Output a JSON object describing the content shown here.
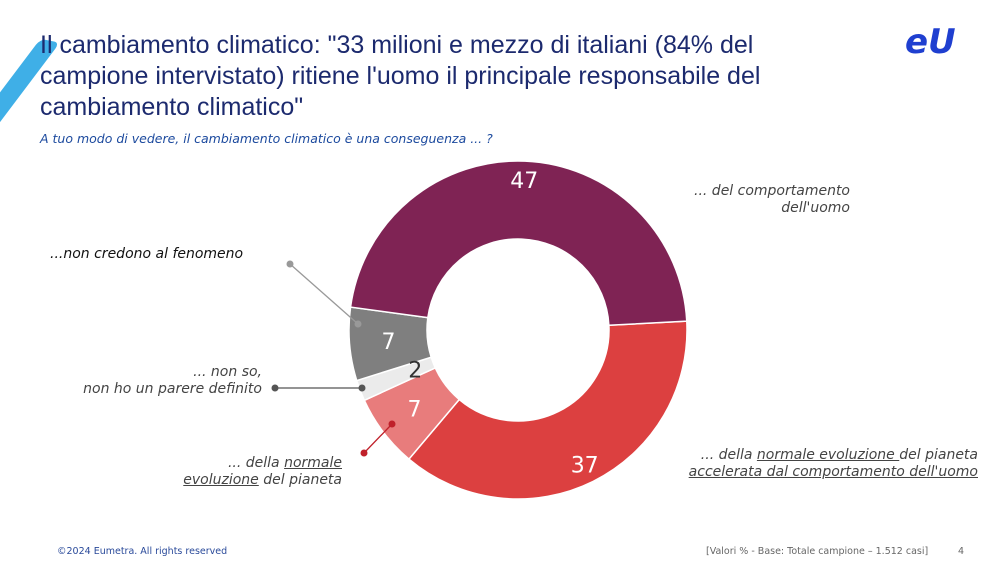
{
  "header": {
    "title": "Il cambiamento climatico: \"33 milioni e mezzo di italiani (84% del campione intervistato) ritiene l'uomo il principale responsabile del cambiamento climatico\"",
    "subtitle": "A tuo modo di vedere, il cambiamento climatico è una conseguenza ... ?",
    "logo": "eU"
  },
  "chart_data": {
    "type": "pie",
    "donut": true,
    "title": "A tuo modo di vedere, il cambiamento climatico è una conseguenza ... ?",
    "slices": [
      {
        "label": "... della normale evoluzione del pianeta accelerata dal comportamento dell'uomo",
        "value": 37,
        "color": "#dc4040"
      },
      {
        "label": "... della normale evoluzione del pianeta",
        "value": 7,
        "color": "#e87c7c"
      },
      {
        "label": "... non so, non ho un parere definito",
        "value": 2,
        "color": "#ebebeb"
      },
      {
        "label": "...non credono al fenomeno",
        "value": 7,
        "color": "#7f7f7f"
      },
      {
        "label": "... del comportamento dell'uomo",
        "value": 47,
        "color": "#7f2354"
      }
    ]
  },
  "labels": {
    "uomo_1": "... del comportamento",
    "uomo_2": "dell'uomo",
    "noncredono": "...non credono al fenomeno",
    "nonso_1": "... non so,",
    "nonso_2": "non ho un parere definito",
    "normale_a": "... della ",
    "normale_b": "normale",
    "normale_c": "evoluzione",
    "normale_d": " del pianeta",
    "acc_a": "... della ",
    "acc_b": "normale evoluzione ",
    "acc_c": "del pianeta",
    "acc_d": "accelerata dal comportamento dell'uomo"
  },
  "footer": {
    "copyright": "©2024 Eumetra. All rights reserved",
    "note": "[Valori  % - Base: Totale campione – 1.512 casi]",
    "page": "4"
  }
}
